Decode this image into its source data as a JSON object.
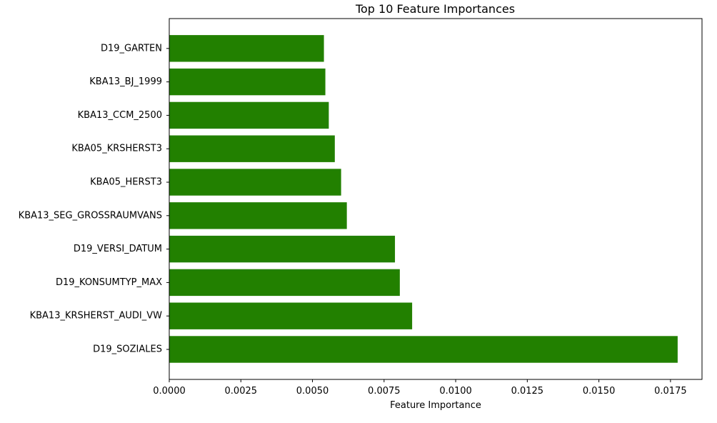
{
  "chart_data": {
    "type": "bar",
    "orientation": "horizontal",
    "title": "Top 10 Feature Importances",
    "xlabel": "Feature Importance",
    "ylabel": "",
    "xlim": [
      0,
      0.0186
    ],
    "x_ticks": [
      0.0,
      0.0025,
      0.005,
      0.0075,
      0.01,
      0.0125,
      0.015,
      0.0175
    ],
    "x_tick_labels": [
      "0.0000",
      "0.0025",
      "0.0050",
      "0.0075",
      "0.0100",
      "0.0125",
      "0.0150",
      "0.0175"
    ],
    "categories": [
      "D19_SOZIALES",
      "KBA13_KRSHERST_AUDI_VW",
      "D19_KONSUMTYP_MAX",
      "D19_VERSI_DATUM",
      "KBA13_SEG_GROSSRAUMVANS",
      "KBA05_HERST3",
      "KBA05_KRSHERST3",
      "KBA13_CCM_2500",
      "KBA13_BJ_1999",
      "D19_GARTEN"
    ],
    "values": [
      0.01775,
      0.00848,
      0.00805,
      0.00788,
      0.0062,
      0.006,
      0.00578,
      0.00557,
      0.00545,
      0.0054
    ],
    "bar_color": "#228000",
    "grid": false,
    "legend": "none"
  }
}
